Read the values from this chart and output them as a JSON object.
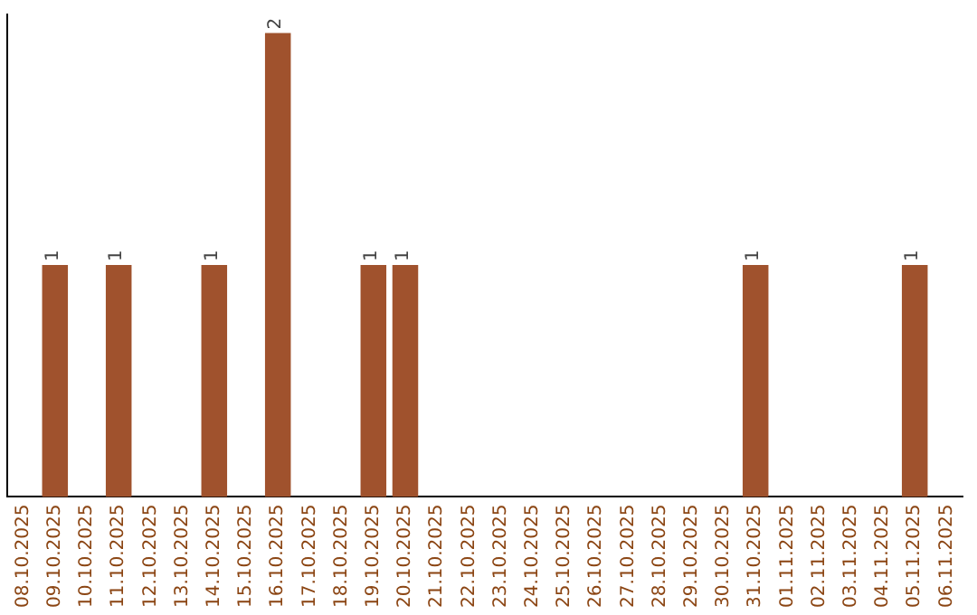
{
  "chart_data": {
    "type": "bar",
    "categories": [
      "08.10.2025",
      "09.10.2025",
      "10.10.2025",
      "11.10.2025",
      "12.10.2025",
      "13.10.2025",
      "14.10.2025",
      "15.10.2025",
      "16.10.2025",
      "17.10.2025",
      "18.10.2025",
      "19.10.2025",
      "20.10.2025",
      "21.10.2025",
      "22.10.2025",
      "23.10.2025",
      "24.10.2025",
      "25.10.2025",
      "26.10.2025",
      "27.10.2025",
      "28.10.2025",
      "29.10.2025",
      "30.10.2025",
      "31.10.2025",
      "01.11.2025",
      "02.11.2025",
      "03.11.2025",
      "04.11.2025",
      "05.11.2025",
      "06.11.2025"
    ],
    "values": [
      0,
      1,
      0,
      1,
      0,
      0,
      1,
      0,
      2,
      0,
      0,
      1,
      1,
      0,
      0,
      0,
      0,
      0,
      0,
      0,
      0,
      0,
      0,
      1,
      0,
      0,
      0,
      0,
      1,
      0
    ],
    "value_labels": [
      null,
      "1",
      null,
      "1",
      null,
      null,
      "1",
      null,
      "2",
      null,
      null,
      "1",
      "1",
      null,
      null,
      null,
      null,
      null,
      null,
      null,
      null,
      null,
      null,
      "1",
      null,
      null,
      null,
      null,
      "1",
      null
    ],
    "color": "#a0522d",
    "ylim": [
      0,
      2.08
    ],
    "tick_labels": "x",
    "legend": false
  }
}
